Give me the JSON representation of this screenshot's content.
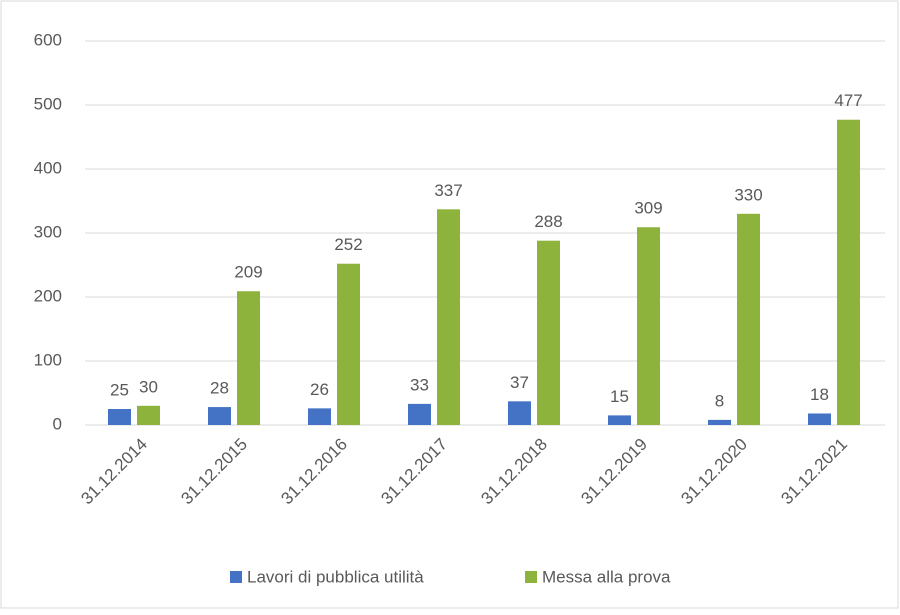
{
  "chart_data": {
    "type": "bar",
    "categories": [
      "31.12.2014",
      "31.12.2015",
      "31.12.2016",
      "31.12.2017",
      "31.12.2018",
      "31.12.2019",
      "31.12.2020",
      "31.12.2021"
    ],
    "series": [
      {
        "name": "Lavori di pubblica utilità",
        "color": "#4472c4",
        "values": [
          25,
          28,
          26,
          33,
          37,
          15,
          8,
          18
        ]
      },
      {
        "name": "Messa alla prova",
        "color": "#8db33c",
        "values": [
          30,
          209,
          252,
          337,
          288,
          309,
          330,
          477
        ]
      }
    ],
    "ylim": [
      0,
      600
    ],
    "yticks": [
      0,
      100,
      200,
      300,
      400,
      500,
      600
    ],
    "grid": true,
    "legend": "bottom"
  }
}
